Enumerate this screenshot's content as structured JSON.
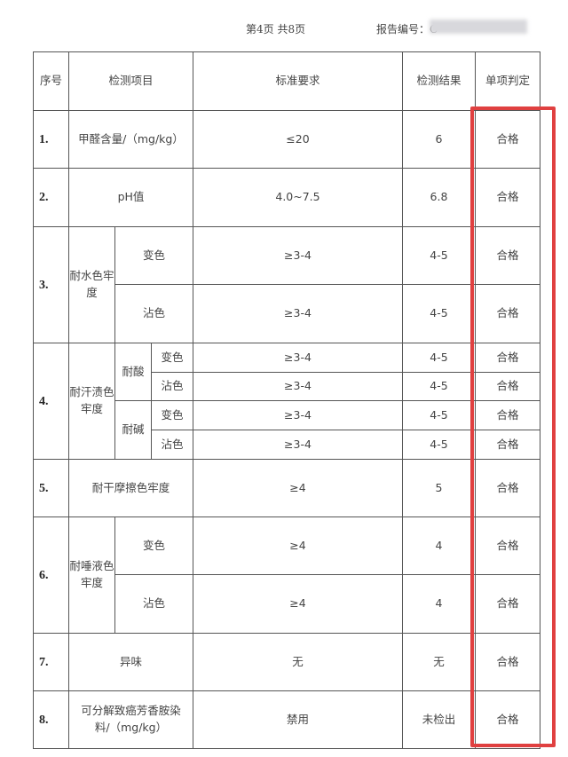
{
  "header": {
    "page": "第4页  共8页",
    "report_no_label": "报告编号：C"
  },
  "columns": [
    "序号",
    "检测项目",
    "标准要求",
    "检测结果",
    "单项判定"
  ],
  "rows": {
    "r1": {
      "seq": "1.",
      "item": "甲醛含量/（mg/kg）",
      "std": "≤20",
      "res": "6",
      "judge": "合格"
    },
    "r2": {
      "seq": "2.",
      "item": "pH值",
      "std": "4.0~7.5",
      "res": "6.8",
      "judge": "合格"
    },
    "r3": {
      "seq": "3.",
      "item": "耐水色牢度",
      "a": {
        "sub": "变色",
        "std": "≥3-4",
        "res": "4-5",
        "judge": "合格"
      },
      "b": {
        "sub": "沾色",
        "std": "≥3-4",
        "res": "4-5",
        "judge": "合格"
      }
    },
    "r4": {
      "seq": "4.",
      "item": "耐汗渍色牢度",
      "acid": "耐酸",
      "alkali": "耐碱",
      "a": {
        "sub": "变色",
        "std": "≥3-4",
        "res": "4-5",
        "judge": "合格"
      },
      "b": {
        "sub": "沾色",
        "std": "≥3-4",
        "res": "4-5",
        "judge": "合格"
      },
      "c": {
        "sub": "变色",
        "std": "≥3-4",
        "res": "4-5",
        "judge": "合格"
      },
      "d": {
        "sub": "沾色",
        "std": "≥3-4",
        "res": "4-5",
        "judge": "合格"
      }
    },
    "r5": {
      "seq": "5.",
      "item": "耐干摩擦色牢度",
      "std": "≥4",
      "res": "5",
      "judge": "合格"
    },
    "r6": {
      "seq": "6.",
      "item": "耐唾液色牢度",
      "a": {
        "sub": "变色",
        "std": "≥4",
        "res": "4",
        "judge": "合格"
      },
      "b": {
        "sub": "沾色",
        "std": "≥4",
        "res": "4",
        "judge": "合格"
      }
    },
    "r7": {
      "seq": "7.",
      "item": "异味",
      "std": "无",
      "res": "无",
      "judge": "合格"
    },
    "r8": {
      "seq": "8.",
      "item": "可分解致癌芳香胺染料/（mg/kg）",
      "std": "禁用",
      "res": "未检出",
      "judge": "合格"
    }
  },
  "highlight_color": "#e04040"
}
